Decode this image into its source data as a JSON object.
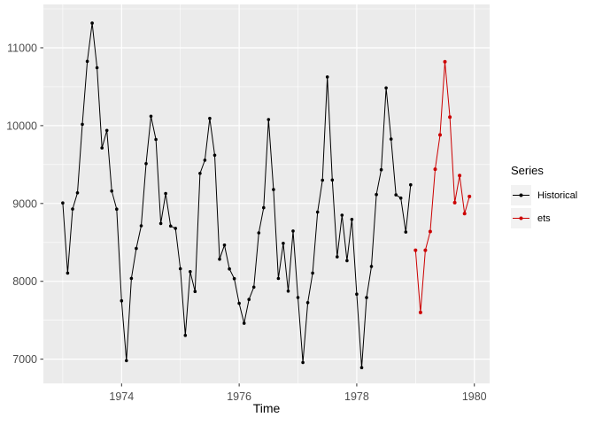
{
  "figure": {
    "background": "#FFFFFF",
    "panel_background": "#EBEBEB",
    "gridline_color": "#FFFFFF",
    "tick_color": "#333333",
    "axis_text_color": "#4D4D4D",
    "axis_title_color": "#000000"
  },
  "chart_data": {
    "type": "line",
    "title": "",
    "xlabel": "Time",
    "ylabel": "",
    "xlim": [
      1972.67,
      1980.26
    ],
    "ylim": [
      6689,
      11557
    ],
    "x_ticks": {
      "major": [
        1974,
        1976,
        1978,
        1980
      ],
      "minor": [
        1973,
        1975,
        1977,
        1979
      ],
      "major_labels": [
        "1974",
        "1976",
        "1978",
        "1980"
      ]
    },
    "y_ticks": {
      "major": [
        7000,
        8000,
        9000,
        10000,
        11000
      ],
      "minor": [
        7500,
        8500,
        9500,
        10500,
        11500
      ],
      "major_labels": [
        "7000",
        "8000",
        "9000",
        "10000",
        "11000"
      ]
    },
    "grid": "on",
    "legend": {
      "title": "Series",
      "position": "right",
      "entries": [
        {
          "label": "Historical",
          "color": "#000000"
        },
        {
          "label": "ets",
          "color": "#CC0000"
        }
      ]
    },
    "series": [
      {
        "name": "Historical",
        "color": "#000000",
        "point_radius": 1.8,
        "start": 1973.0,
        "points_per_year": 12,
        "values": [
          9007,
          8106,
          8928,
          9137,
          10017,
          10826,
          11317,
          10744,
          9713,
          9938,
          9161,
          8927,
          7750,
          6981,
          8038,
          8422,
          8714,
          9512,
          10120,
          9823,
          8743,
          9129,
          8710,
          8680,
          8162,
          7306,
          8124,
          7870,
          9387,
          9556,
          10093,
          9620,
          8285,
          8466,
          8160,
          8034,
          7717,
          7461,
          7767,
          7925,
          8623,
          8945,
          10078,
          9179,
          8037,
          8488,
          7874,
          8647,
          7792,
          6957,
          7726,
          8106,
          8890,
          9299,
          10625,
          9302,
          8314,
          8850,
          8265,
          8796,
          7836,
          6892,
          7791,
          8192,
          9115,
          9434,
          10484,
          9827,
          9110,
          9070,
          8633,
          9240
        ]
      },
      {
        "name": "ets",
        "color": "#CC0000",
        "point_radius": 2.0,
        "start": 1979.0,
        "points_per_year": 12,
        "values": [
          8400,
          7600,
          8400,
          8640,
          9440,
          9880,
          10820,
          10110,
          9010,
          9360,
          8870,
          9090
        ]
      }
    ]
  }
}
